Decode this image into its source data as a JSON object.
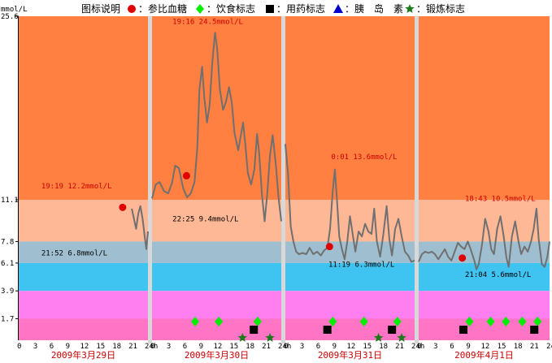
{
  "chart_data": {
    "type": "line",
    "y_unit": "mmol/L",
    "ylim": [
      0,
      25.6
    ],
    "y_ticks": [
      "25.6",
      "11.1",
      "7.8",
      "6.1",
      "3.9",
      "1.7"
    ],
    "x_ticks": [
      "0",
      "3",
      "6",
      "9",
      "12",
      "15",
      "18",
      "21",
      "24h"
    ],
    "legend": {
      "title": "图标说明",
      "items": [
        {
          "label": "参比血糖",
          "marker": "circle",
          "color": "#e00000"
        },
        {
          "label": "饮食标志",
          "marker": "diamond",
          "color": "#00ee00"
        },
        {
          "label": "用药标志",
          "marker": "square",
          "color": "#000000"
        },
        {
          "label": "胰　岛　素",
          "marker": "triangle",
          "color": "#0000cc"
        },
        {
          "label": "锻炼标志",
          "marker": "star",
          "color": "#1c7a1c"
        }
      ]
    },
    "bands": [
      {
        "from": 11.1,
        "to": 25.6,
        "color": "#ff8040"
      },
      {
        "from": 7.8,
        "to": 11.1,
        "color": "#ffb896"
      },
      {
        "from": 6.1,
        "to": 7.8,
        "color": "#9fbfd0"
      },
      {
        "from": 3.9,
        "to": 6.1,
        "color": "#3fc3f0"
      },
      {
        "from": 1.7,
        "to": 3.9,
        "color": "#ff7ef0"
      },
      {
        "from": 0,
        "to": 1.7,
        "color": "#ff74c4"
      }
    ],
    "line_color": "#707070",
    "days": [
      {
        "date": "2009年3月29日",
        "series": [
          [
            21.0,
            10.4
          ],
          [
            21.4,
            9.6
          ],
          [
            21.8,
            8.8
          ],
          [
            22.2,
            10.0
          ],
          [
            22.6,
            10.6
          ],
          [
            23.0,
            9.6
          ],
          [
            23.4,
            8.2
          ],
          [
            23.7,
            7.2
          ],
          [
            24.0,
            8.6
          ]
        ],
        "annotations": [
          {
            "text": "19:19 12.2mmol/L",
            "hour": 4.2,
            "value": 12.0,
            "color": "#cc0000"
          },
          {
            "text": "21:52 6.8mmol/L",
            "hour": 4.2,
            "value": 6.7,
            "color": "#000000"
          }
        ],
        "ref_points": [
          {
            "hour": 19.3,
            "value": 10.5
          }
        ],
        "meal_markers": [],
        "med_markers": [],
        "exercise_markers": []
      },
      {
        "date": "2009年3月30日",
        "series": [
          [
            0.0,
            11.2
          ],
          [
            0.7,
            12.3
          ],
          [
            1.4,
            12.5
          ],
          [
            2.2,
            11.8
          ],
          [
            3.0,
            11.6
          ],
          [
            3.7,
            12.4
          ],
          [
            4.3,
            13.8
          ],
          [
            5.0,
            13.6
          ],
          [
            5.8,
            12.0
          ],
          [
            6.5,
            11.3
          ],
          [
            7.2,
            11.6
          ],
          [
            7.9,
            12.5
          ],
          [
            8.4,
            15.2
          ],
          [
            8.8,
            19.8
          ],
          [
            9.3,
            21.6
          ],
          [
            9.7,
            19.2
          ],
          [
            10.2,
            17.2
          ],
          [
            10.7,
            18.6
          ],
          [
            11.2,
            22.0
          ],
          [
            11.7,
            24.3
          ],
          [
            12.1,
            23.0
          ],
          [
            12.6,
            19.8
          ],
          [
            13.2,
            18.2
          ],
          [
            13.7,
            18.8
          ],
          [
            14.3,
            20.0
          ],
          [
            14.8,
            18.8
          ],
          [
            15.3,
            16.4
          ],
          [
            16.0,
            15.0
          ],
          [
            16.5,
            16.2
          ],
          [
            16.9,
            17.2
          ],
          [
            17.3,
            15.6
          ],
          [
            17.8,
            13.2
          ],
          [
            18.4,
            12.3
          ],
          [
            19.0,
            13.5
          ],
          [
            19.5,
            16.3
          ],
          [
            19.9,
            14.8
          ],
          [
            20.4,
            11.6
          ],
          [
            20.9,
            9.4
          ],
          [
            21.4,
            11.6
          ],
          [
            21.9,
            14.6
          ],
          [
            22.4,
            16.2
          ],
          [
            23.0,
            13.8
          ],
          [
            23.5,
            11.2
          ],
          [
            24.0,
            9.4
          ]
        ],
        "annotations": [
          {
            "text": "19:16 24.5mmol/L",
            "hour": 3.8,
            "value": 25.0,
            "color": "#cc0000"
          },
          {
            "text": "22:25 9.4mmol/L",
            "hour": 3.8,
            "value": 9.4,
            "color": "#000000"
          }
        ],
        "ref_points": [
          {
            "hour": 6.4,
            "value": 13.0
          }
        ],
        "meal_markers": [
          8.0,
          12.4,
          19.6
        ],
        "med_markers": [
          18.9
        ],
        "exercise_markers": [
          16.8,
          21.9
        ]
      },
      {
        "date": "2009年3月31日",
        "series": [
          [
            0.0,
            15.5
          ],
          [
            0.5,
            13.2
          ],
          [
            1.0,
            9.0
          ],
          [
            1.5,
            7.8
          ],
          [
            2.0,
            7.0
          ],
          [
            2.5,
            6.8
          ],
          [
            3.2,
            6.9
          ],
          [
            3.9,
            6.8
          ],
          [
            4.5,
            7.3
          ],
          [
            5.2,
            6.8
          ],
          [
            5.9,
            7.0
          ],
          [
            6.6,
            6.7
          ],
          [
            7.2,
            7.1
          ],
          [
            7.8,
            7.3
          ],
          [
            8.3,
            8.8
          ],
          [
            8.8,
            11.8
          ],
          [
            9.2,
            13.5
          ],
          [
            9.6,
            11.0
          ],
          [
            10.0,
            8.2
          ],
          [
            10.5,
            7.2
          ],
          [
            11.0,
            6.4
          ],
          [
            11.5,
            7.8
          ],
          [
            12.0,
            9.8
          ],
          [
            12.5,
            8.4
          ],
          [
            13.0,
            7.0
          ],
          [
            13.6,
            8.6
          ],
          [
            14.2,
            8.2
          ],
          [
            14.8,
            9.2
          ],
          [
            15.4,
            8.6
          ],
          [
            16.0,
            8.4
          ],
          [
            16.5,
            10.4
          ],
          [
            17.0,
            7.8
          ],
          [
            17.6,
            6.6
          ],
          [
            18.2,
            8.4
          ],
          [
            18.8,
            10.6
          ],
          [
            19.3,
            8.0
          ],
          [
            19.8,
            6.7
          ],
          [
            20.4,
            8.8
          ],
          [
            21.0,
            9.6
          ],
          [
            21.6,
            8.2
          ],
          [
            22.2,
            7.0
          ],
          [
            22.8,
            6.7
          ],
          [
            23.4,
            6.2
          ],
          [
            24.0,
            6.3
          ]
        ],
        "annotations": [
          {
            "text": "0:01 13.6mmol/L",
            "hour": 8.5,
            "value": 14.3,
            "color": "#cc0000"
          },
          {
            "text": "11:19 6.3mmol/L",
            "hour": 8.0,
            "value": 5.8,
            "color": "#000000"
          }
        ],
        "ref_points": [
          {
            "hour": 8.2,
            "value": 7.4
          }
        ],
        "meal_markers": [
          8.8,
          14.6,
          20.8
        ],
        "med_markers": [
          7.8,
          19.8
        ],
        "exercise_markers": [
          17.3,
          21.6
        ]
      },
      {
        "date": "2009年4月1日",
        "series": [
          [
            0.0,
            6.2
          ],
          [
            0.6,
            6.8
          ],
          [
            1.2,
            7.0
          ],
          [
            1.8,
            6.9
          ],
          [
            2.4,
            7.0
          ],
          [
            3.0,
            6.8
          ],
          [
            3.6,
            6.4
          ],
          [
            4.2,
            6.8
          ],
          [
            4.8,
            7.2
          ],
          [
            5.4,
            6.6
          ],
          [
            6.0,
            6.3
          ],
          [
            6.6,
            7.0
          ],
          [
            7.2,
            7.7
          ],
          [
            7.8,
            7.4
          ],
          [
            8.4,
            7.2
          ],
          [
            9.0,
            7.8
          ],
          [
            9.6,
            7.1
          ],
          [
            10.2,
            6.3
          ],
          [
            10.6,
            5.6
          ],
          [
            11.0,
            6.0
          ],
          [
            11.6,
            7.5
          ],
          [
            12.2,
            9.6
          ],
          [
            12.8,
            8.6
          ],
          [
            13.3,
            7.2
          ],
          [
            13.8,
            6.8
          ],
          [
            14.4,
            8.8
          ],
          [
            15.0,
            9.8
          ],
          [
            15.6,
            8.2
          ],
          [
            16.1,
            6.5
          ],
          [
            16.5,
            5.8
          ],
          [
            17.1,
            8.2
          ],
          [
            17.7,
            9.4
          ],
          [
            18.3,
            7.8
          ],
          [
            18.8,
            6.8
          ],
          [
            19.4,
            7.4
          ],
          [
            20.0,
            7.0
          ],
          [
            20.6,
            7.8
          ],
          [
            21.1,
            8.8
          ],
          [
            21.6,
            10.4
          ],
          [
            22.0,
            8.0
          ],
          [
            22.6,
            6.0
          ],
          [
            23.1,
            5.8
          ],
          [
            23.6,
            6.6
          ],
          [
            24.0,
            7.8
          ]
        ],
        "annotations": [
          {
            "text": "18:43 10.5mmol/L",
            "hour": 8.5,
            "value": 11.0,
            "color": "#cc0000"
          },
          {
            "text": "21:04 5.6mmol/L",
            "hour": 8.5,
            "value": 5.0,
            "color": "#000000"
          }
        ],
        "ref_points": [
          {
            "hour": 8.0,
            "value": 6.5
          }
        ],
        "meal_markers": [
          9.3,
          13.2,
          16.0,
          19.0,
          21.8
        ],
        "med_markers": [
          8.2,
          21.2
        ],
        "exercise_markers": []
      }
    ]
  }
}
